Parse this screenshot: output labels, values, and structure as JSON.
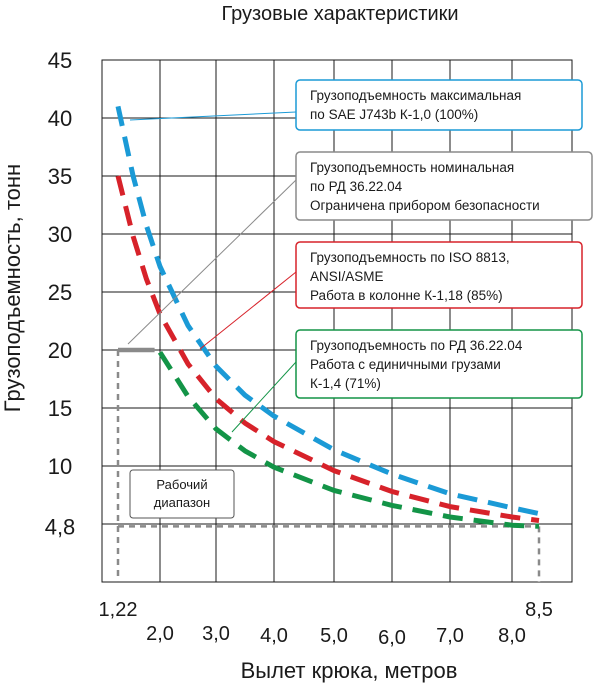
{
  "chart_data": {
    "type": "line",
    "title": "Грузовые характеристики",
    "xlabel": "Вылет крюка, метров",
    "ylabel": "Грузоподъемность, тонн",
    "xlim": [
      1.0,
      9.0
    ],
    "ylim": [
      0,
      45
    ],
    "grid": true,
    "y_ticks": [
      "45",
      "40",
      "35",
      "30",
      "25",
      "20",
      "15",
      "10",
      "4,8"
    ],
    "x_ticks": [
      "1,22",
      "2,0",
      "3,0",
      "4,0",
      "5,0",
      "6,0",
      "7,0",
      "8,0",
      "8,5"
    ],
    "highlight_ticks": [
      "20",
      "4,8",
      "1,22",
      "8,5"
    ],
    "colors": {
      "accent_red": "#d22630",
      "blue": "#1b9ad6",
      "red": "#d7222a",
      "green": "#139447",
      "gray": "#8a8a8a"
    },
    "series": [
      {
        "color": "#1b9ad6",
        "dashed": true,
        "x": [
          1.22,
          1.5,
          1.75,
          2.0,
          2.5,
          3.0,
          3.5,
          4.0,
          5.0,
          6.0,
          7.0,
          8.0,
          8.5
        ],
        "y": [
          41,
          35,
          30.7,
          27.2,
          22.1,
          18.6,
          16.1,
          14.3,
          11.4,
          9.3,
          7.6,
          6.4,
          5.9
        ]
      },
      {
        "color": "#d7222a",
        "dashed": true,
        "x": [
          1.22,
          1.5,
          1.75,
          2.0,
          2.5,
          3.0,
          3.5,
          4.0,
          5.0,
          6.0,
          7.0,
          8.0,
          8.5
        ],
        "y": [
          35,
          29.8,
          26.1,
          23.1,
          18.8,
          15.8,
          13.7,
          12.1,
          9.6,
          7.8,
          6.5,
          5.6,
          5.3
        ]
      },
      {
        "color": "#8a8a8a",
        "dashed": false,
        "x": [
          1.22,
          1.9
        ],
        "y": [
          20,
          20
        ]
      },
      {
        "color": "#139447",
        "dashed": true,
        "x": [
          2.0,
          2.5,
          3.0,
          3.5,
          4.0,
          5.0,
          6.0,
          7.0,
          8.0,
          8.5
        ],
        "y": [
          19.8,
          16.0,
          13.2,
          11.3,
          9.9,
          7.9,
          6.6,
          5.6,
          4.9,
          4.8
        ]
      }
    ],
    "annotations": [
      {
        "color": "#1b9ad6",
        "lines": [
          "Грузоподъемность максимальная",
          "по SAE J743b К-1,0 (100%)"
        ]
      },
      {
        "color": "#8a8a8a",
        "lines": [
          "Грузоподъемность номинальная",
          "по РД 36.22.04",
          "Ограничена прибором безопасности"
        ]
      },
      {
        "color": "#d7222a",
        "lines": [
          "Грузоподъемность по ISO 8813,",
          "ANSI/ASME",
          "Работа в колонне К-1,18 (85%)"
        ]
      },
      {
        "color": "#139447",
        "lines": [
          "Грузоподъемность по РД 36.22.04",
          "Работа с единичными грузами",
          "К-1,4 (71%)"
        ]
      }
    ],
    "range_box": [
      "Рабочий",
      "диапазон"
    ]
  }
}
